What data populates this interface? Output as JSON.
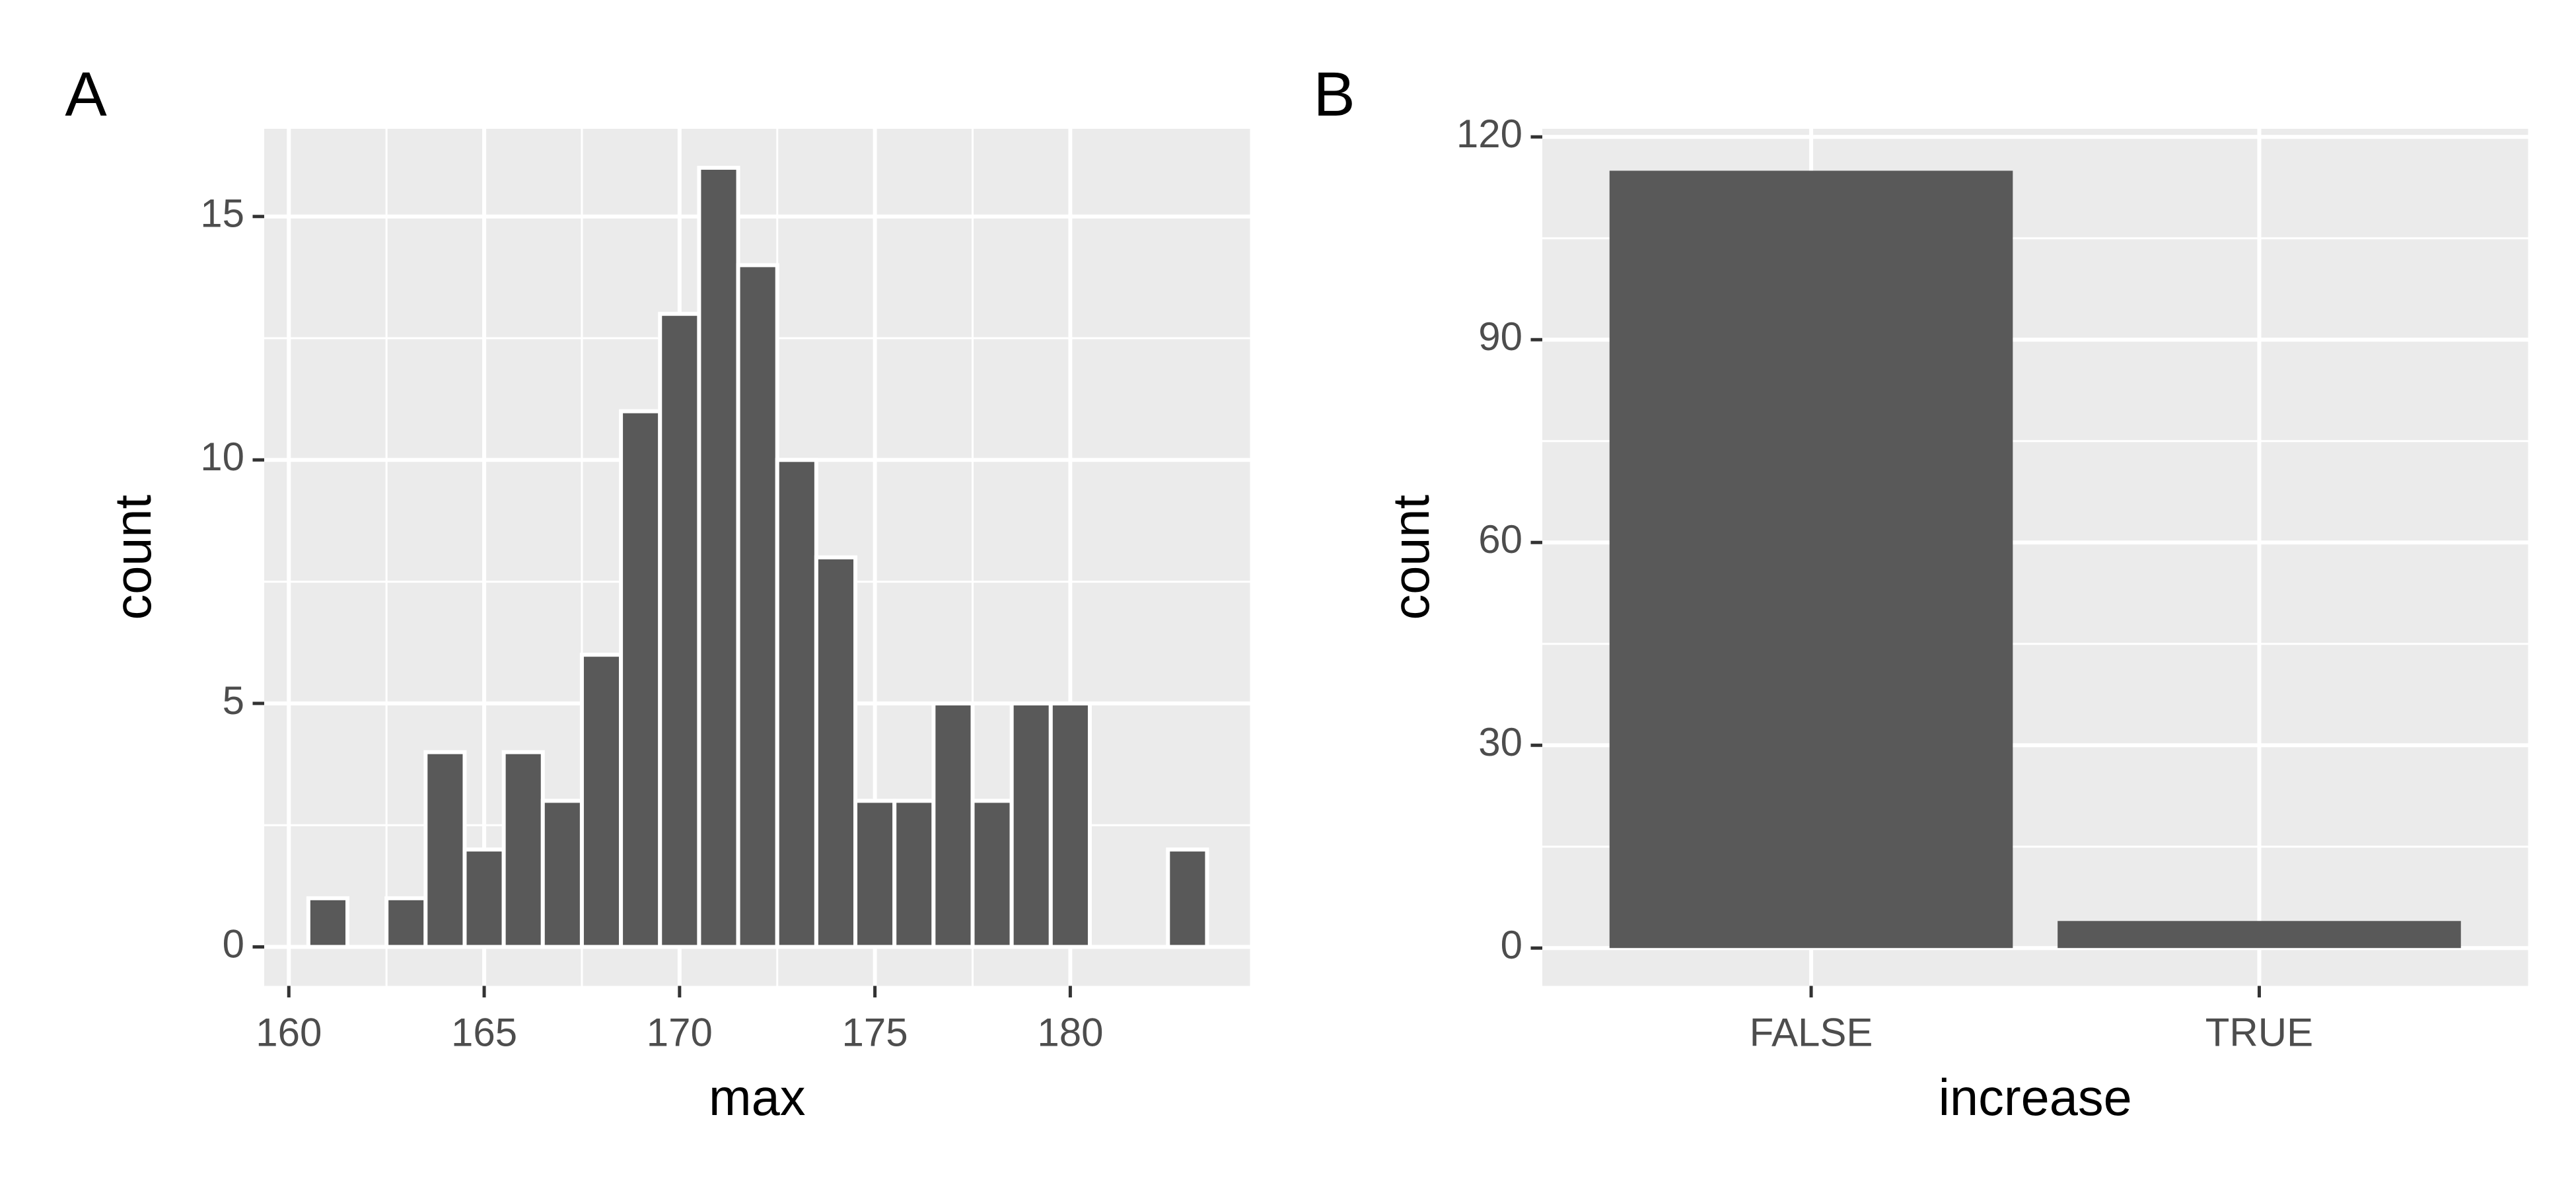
{
  "chart_data": [
    {
      "type": "histogram",
      "tag": "A",
      "x_label": "max",
      "y_label": "count",
      "bins": [
        160.5,
        161.5,
        162.5,
        163.5,
        164.5,
        165.5,
        166.5,
        167.5,
        168.5,
        169.5,
        170.5,
        171.5,
        172.5,
        173.5,
        174.5,
        175.5,
        176.5,
        177.5,
        178.5,
        179.5,
        180.5,
        181.5,
        182.5,
        183.5
      ],
      "values": [
        1,
        0,
        1,
        4,
        2,
        4,
        3,
        6,
        11,
        13,
        16,
        14,
        10,
        8,
        3,
        3,
        5,
        3,
        5,
        5,
        0,
        0,
        2
      ],
      "color": "#595959",
      "edge_color": "#ffffff",
      "xlim": [
        159.37,
        184.6
      ],
      "xticks": [
        160,
        165,
        170,
        175,
        180
      ],
      "ylim": [
        -0.8,
        16.8
      ],
      "yticks": [
        0,
        5,
        10,
        15
      ],
      "grid": true
    },
    {
      "type": "bar",
      "tag": "B",
      "x_label": "increase",
      "y_label": "count",
      "categories": [
        "FALSE",
        "TRUE"
      ],
      "values": [
        115,
        4
      ],
      "color": "#595959",
      "ylim": [
        -5.6,
        121.2
      ],
      "yticks": [
        0,
        30,
        60,
        90,
        120
      ],
      "grid": true
    }
  ]
}
